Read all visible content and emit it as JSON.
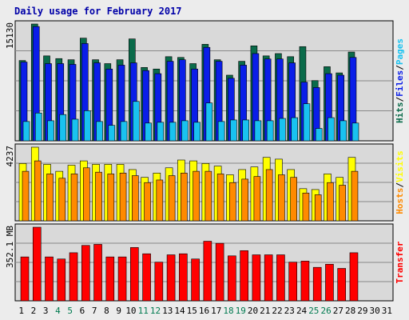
{
  "title": "Daily usage for February 2017",
  "colors": {
    "hits": "#0a6b4a",
    "files": "#0a1ee8",
    "pages": "#19c2f0",
    "visits": "#ffff00",
    "hosts": "#ff8a00",
    "transfer": "#ff0000",
    "weekend_day": "#007a50",
    "title": "#0000a8",
    "panel_bg": "#d9d9d9",
    "page_bg": "#ececec"
  },
  "chart_data": [
    {
      "type": "bar",
      "name_label": "Hits/Files/Pages",
      "legend": [
        "Hits",
        "Files",
        "Pages"
      ],
      "max_label": "15130",
      "ylim": [
        0,
        15130
      ],
      "categories": [
        "1",
        "2",
        "3",
        "4",
        "5",
        "6",
        "7",
        "8",
        "9",
        "10",
        "11",
        "12",
        "13",
        "14",
        "15",
        "16",
        "17",
        "18",
        "19",
        "20",
        "21",
        "22",
        "23",
        "24",
        "25",
        "26",
        "27",
        "28",
        "29",
        "30",
        "31"
      ],
      "weekend_days": [
        4,
        5,
        11,
        12,
        18,
        19,
        25,
        26
      ],
      "series": [
        {
          "name": "Hits",
          "values": [
            10400,
            15130,
            11000,
            10650,
            10500,
            13300,
            10500,
            10000,
            10500,
            13200,
            9500,
            9300,
            10900,
            10800,
            10000,
            12500,
            10500,
            8500,
            10300,
            12300,
            11000,
            11300,
            10900,
            12200,
            7800,
            9600,
            8800,
            11500,
            null,
            null,
            null
          ]
        },
        {
          "name": "Files",
          "values": [
            10200,
            14800,
            10000,
            10000,
            9900,
            12600,
            10100,
            9300,
            9800,
            10100,
            9100,
            8700,
            10300,
            10500,
            9300,
            12100,
            10300,
            8100,
            9800,
            11300,
            10600,
            10600,
            10100,
            7600,
            6900,
            8700,
            8500,
            10800,
            null,
            null,
            null
          ]
        },
        {
          "name": "Pages",
          "values": [
            2500,
            3600,
            2600,
            3400,
            2800,
            3900,
            2500,
            2000,
            2500,
            5100,
            2300,
            2400,
            2400,
            2600,
            2400,
            4900,
            2500,
            2700,
            2700,
            2600,
            2600,
            2900,
            3000,
            4800,
            1600,
            3000,
            2600,
            2300,
            null,
            null,
            null
          ]
        }
      ]
    },
    {
      "type": "bar",
      "name_label": "Hosts/Visits",
      "legend": [
        "Visits",
        "Hosts"
      ],
      "max_label": "4237",
      "ylim": [
        0,
        4237
      ],
      "categories": [
        "1",
        "2",
        "3",
        "4",
        "5",
        "6",
        "7",
        "8",
        "9",
        "10",
        "11",
        "12",
        "13",
        "14",
        "15",
        "16",
        "17",
        "18",
        "19",
        "20",
        "21",
        "22",
        "23",
        "24",
        "25",
        "26",
        "27",
        "28",
        "29",
        "30",
        "31"
      ],
      "series": [
        {
          "name": "Visits",
          "values": [
            3300,
            4237,
            3250,
            2850,
            3200,
            3450,
            3250,
            3250,
            3250,
            2950,
            2500,
            2750,
            3050,
            3500,
            3450,
            3300,
            3150,
            2650,
            2950,
            3100,
            3650,
            3550,
            2950,
            1850,
            1800,
            2700,
            2500,
            3650,
            null,
            null,
            null
          ]
        },
        {
          "name": "Hosts",
          "values": [
            2850,
            3450,
            2700,
            2450,
            2700,
            3050,
            2800,
            2700,
            2750,
            2600,
            2200,
            2350,
            2600,
            2750,
            2850,
            2850,
            2700,
            2200,
            2400,
            2550,
            2950,
            2650,
            2500,
            1600,
            1500,
            2200,
            2050,
            2850,
            null,
            null,
            null
          ]
        }
      ]
    },
    {
      "type": "bar",
      "name_label": "Transfer",
      "legend": [
        "Transfer"
      ],
      "max_label": "352.1 MB",
      "ylim": [
        0,
        352.1
      ],
      "categories": [
        "1",
        "2",
        "3",
        "4",
        "5",
        "6",
        "7",
        "8",
        "9",
        "10",
        "11",
        "12",
        "13",
        "14",
        "15",
        "16",
        "17",
        "18",
        "19",
        "20",
        "21",
        "22",
        "23",
        "24",
        "25",
        "26",
        "27",
        "28",
        "29",
        "30",
        "31"
      ],
      "series": [
        {
          "name": "Transfer",
          "values": [
            210,
            352,
            210,
            200,
            230,
            265,
            270,
            210,
            210,
            255,
            225,
            185,
            220,
            225,
            200,
            285,
            275,
            215,
            240,
            220,
            220,
            220,
            185,
            190,
            160,
            175,
            155,
            230,
            null,
            null,
            null
          ]
        }
      ]
    }
  ]
}
